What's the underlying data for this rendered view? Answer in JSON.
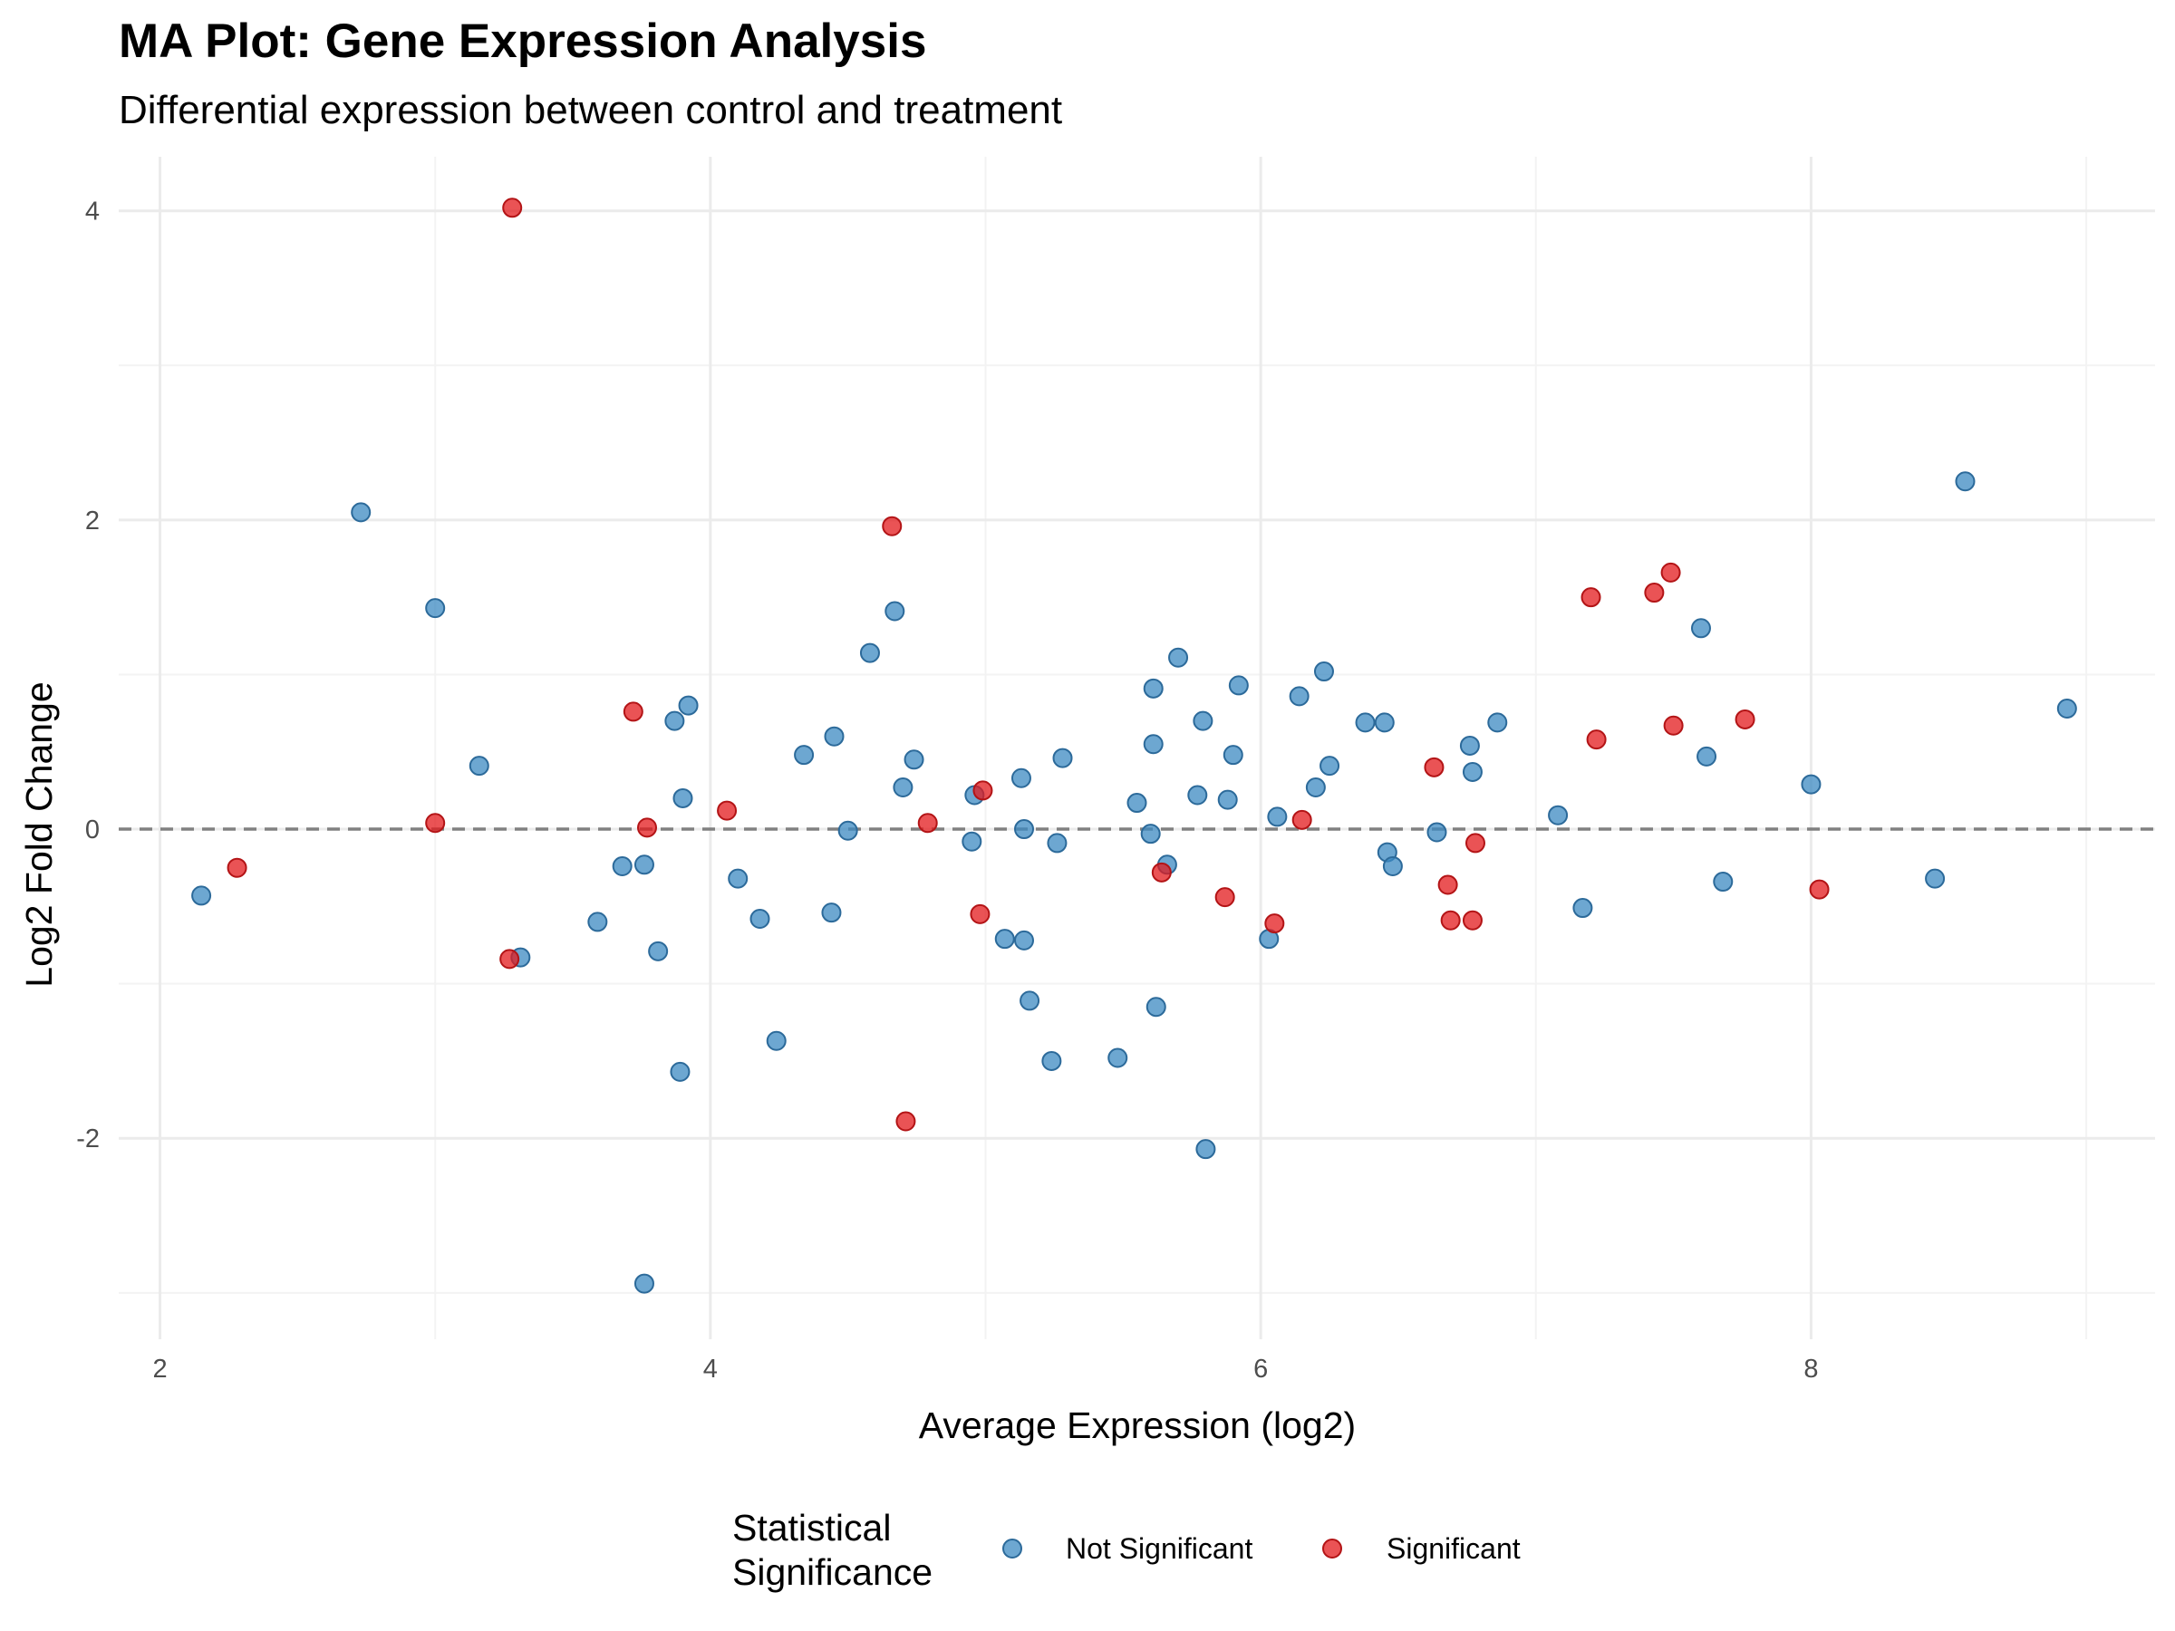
{
  "chart_data": {
    "type": "scatter",
    "title": "MA Plot: Gene Expression Analysis",
    "subtitle": "Differential expression between control and treatment",
    "xlabel": "Average Expression (log2)",
    "ylabel": "Log2 Fold Change",
    "xlim": [
      1.85,
      9.25
    ],
    "ylim": [
      -3.3,
      4.35
    ],
    "x_ticks": [
      2,
      4,
      6,
      8
    ],
    "y_ticks": [
      -2,
      0,
      2,
      4
    ],
    "reference_line": {
      "y": 0,
      "style": "dashed",
      "color": "#808080"
    },
    "grid": true,
    "legend": {
      "title_lines": [
        "Statistical",
        "Significance"
      ],
      "position": "bottom"
    },
    "series": [
      {
        "name": "Not Significant",
        "color": "#3C89C2",
        "stroke": "#2C6A9A",
        "points": [
          [
            2.15,
            -0.43
          ],
          [
            2.73,
            2.05
          ],
          [
            3.0,
            1.43
          ],
          [
            3.16,
            0.41
          ],
          [
            3.31,
            -0.83
          ],
          [
            3.59,
            -0.6
          ],
          [
            3.68,
            -0.24
          ],
          [
            3.76,
            -0.23
          ],
          [
            3.76,
            -2.94
          ],
          [
            3.81,
            -0.79
          ],
          [
            3.87,
            0.7
          ],
          [
            3.89,
            -1.57
          ],
          [
            3.9,
            0.2
          ],
          [
            3.92,
            0.8
          ],
          [
            4.1,
            -0.32
          ],
          [
            4.18,
            -0.58
          ],
          [
            4.24,
            -1.37
          ],
          [
            4.34,
            0.48
          ],
          [
            4.44,
            -0.54
          ],
          [
            4.45,
            0.6
          ],
          [
            4.5,
            -0.01
          ],
          [
            4.58,
            1.14
          ],
          [
            4.67,
            1.41
          ],
          [
            4.7,
            0.27
          ],
          [
            4.74,
            0.45
          ],
          [
            4.95,
            -0.08
          ],
          [
            4.96,
            0.22
          ],
          [
            5.07,
            -0.71
          ],
          [
            5.13,
            0.33
          ],
          [
            5.14,
            -0.72
          ],
          [
            5.14,
            0.0
          ],
          [
            5.16,
            -1.11
          ],
          [
            5.24,
            -1.5
          ],
          [
            5.26,
            -0.09
          ],
          [
            5.28,
            0.46
          ],
          [
            5.48,
            -1.48
          ],
          [
            5.55,
            0.17
          ],
          [
            5.6,
            -0.03
          ],
          [
            5.61,
            0.91
          ],
          [
            5.61,
            0.55
          ],
          [
            5.62,
            -1.15
          ],
          [
            5.66,
            -0.23
          ],
          [
            5.7,
            1.11
          ],
          [
            5.77,
            0.22
          ],
          [
            5.79,
            0.7
          ],
          [
            5.8,
            -2.07
          ],
          [
            5.88,
            0.19
          ],
          [
            5.9,
            0.48
          ],
          [
            5.92,
            0.93
          ],
          [
            6.03,
            -0.71
          ],
          [
            6.06,
            0.08
          ],
          [
            6.14,
            0.86
          ],
          [
            6.2,
            0.27
          ],
          [
            6.23,
            1.02
          ],
          [
            6.25,
            0.41
          ],
          [
            6.38,
            0.69
          ],
          [
            6.45,
            0.69
          ],
          [
            6.46,
            -0.15
          ],
          [
            6.48,
            -0.24
          ],
          [
            6.64,
            -0.02
          ],
          [
            6.76,
            0.54
          ],
          [
            6.77,
            0.37
          ],
          [
            6.86,
            0.69
          ],
          [
            7.08,
            0.09
          ],
          [
            7.17,
            -0.51
          ],
          [
            7.6,
            1.3
          ],
          [
            7.62,
            0.47
          ],
          [
            7.68,
            -0.34
          ],
          [
            8.0,
            0.29
          ],
          [
            8.45,
            -0.32
          ],
          [
            8.56,
            2.25
          ],
          [
            8.93,
            0.78
          ]
        ]
      },
      {
        "name": "Significant",
        "color": "#E31A1C",
        "stroke": "#B31416",
        "points": [
          [
            2.28,
            -0.25
          ],
          [
            3.0,
            0.04
          ],
          [
            3.27,
            -0.84
          ],
          [
            3.28,
            4.02
          ],
          [
            3.72,
            0.76
          ],
          [
            3.77,
            0.01
          ],
          [
            4.06,
            0.12
          ],
          [
            4.66,
            1.96
          ],
          [
            4.71,
            -1.89
          ],
          [
            4.79,
            0.04
          ],
          [
            4.98,
            -0.55
          ],
          [
            4.99,
            0.25
          ],
          [
            5.64,
            -0.28
          ],
          [
            5.87,
            -0.44
          ],
          [
            6.05,
            -0.61
          ],
          [
            6.15,
            0.06
          ],
          [
            6.63,
            0.4
          ],
          [
            6.68,
            -0.36
          ],
          [
            6.69,
            -0.59
          ],
          [
            6.77,
            -0.59
          ],
          [
            6.78,
            -0.09
          ],
          [
            7.2,
            1.5
          ],
          [
            7.22,
            0.58
          ],
          [
            7.43,
            1.53
          ],
          [
            7.49,
            1.66
          ],
          [
            7.5,
            0.67
          ],
          [
            7.76,
            0.71
          ],
          [
            8.03,
            -0.39
          ]
        ]
      }
    ]
  }
}
